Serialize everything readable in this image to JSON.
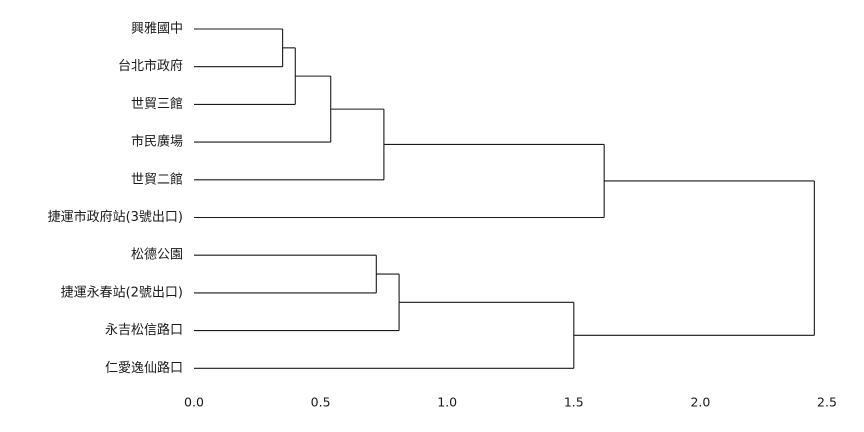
{
  "chart_data": {
    "type": "dendrogram",
    "orientation": "horizontal",
    "title": "",
    "xlabel": "",
    "ylabel": "",
    "xlim": [
      0,
      2.5
    ],
    "xticks": [
      "0.0",
      "0.5",
      "1.0",
      "1.5",
      "2.0",
      "2.5"
    ],
    "grid": false,
    "legend": "none",
    "line_color": "#1a1a1a",
    "leaves": [
      "興雅國中",
      "台北市政府",
      "世貿三館",
      "市民廣場",
      "世貿二館",
      "捷運市政府站(3號出口)",
      "松德公園",
      "捷運永春站(2號出口)",
      "永吉松信路口",
      "仁愛逸仙路口"
    ],
    "merges": [
      {
        "left": "L0",
        "right": "L1",
        "height": 0.35
      },
      {
        "left": "N0",
        "right": "L2",
        "height": 0.4
      },
      {
        "left": "N1",
        "right": "L3",
        "height": 0.54
      },
      {
        "left": "N2",
        "right": "L4",
        "height": 0.75
      },
      {
        "left": "N3",
        "right": "L5",
        "height": 1.62
      },
      {
        "left": "L6",
        "right": "L7",
        "height": 0.72
      },
      {
        "left": "N5",
        "right": "L8",
        "height": 0.81
      },
      {
        "left": "N6",
        "right": "L9",
        "height": 1.5
      },
      {
        "left": "N4",
        "right": "N7",
        "height": 2.45
      }
    ]
  }
}
